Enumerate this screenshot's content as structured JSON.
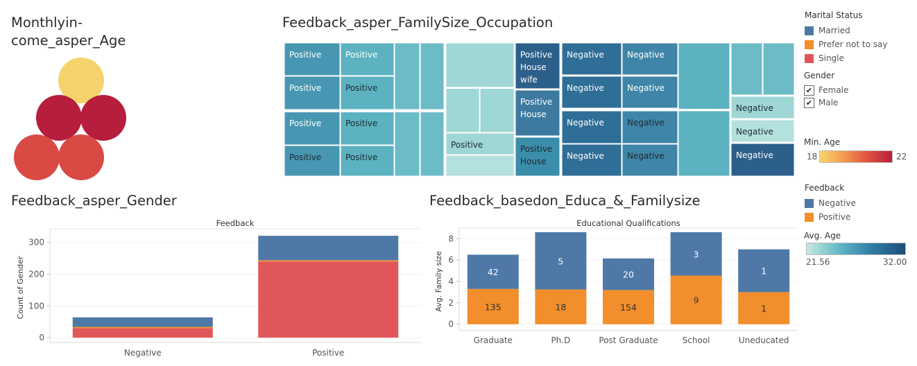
{
  "titles": {
    "age": "Monthlyin-\ncome_asper_Age",
    "treemap": "Feedback_asper_FamilySize_Occupation",
    "gender": "Feedback_asper_Gender",
    "edu": "Feedback_basedon_Educa_&_Familysize"
  },
  "colors": {
    "married": "#4e79a7",
    "prefer_not": "#f28e2b",
    "single": "#e15759",
    "negative": "#4e79a7",
    "positive": "#f28e2b"
  },
  "legends": {
    "marital": {
      "title": "Marital Status",
      "items": [
        "Married",
        "Prefer not to say",
        "Single"
      ]
    },
    "gender": {
      "title": "Gender",
      "items": [
        "Female",
        "Male"
      ]
    },
    "min_age": {
      "title": "Min. Age",
      "min": "18",
      "max": "22"
    },
    "feedback": {
      "title": "Feedback",
      "items": [
        "Negative",
        "Positive"
      ]
    },
    "avg_age": {
      "title": "Avg. Age",
      "min": "21.56",
      "max": "32.00"
    }
  },
  "chart_data": [
    {
      "type": "bubble",
      "title": "Monthlyin-come_asper_Age",
      "color_measure": "Min. Age",
      "bubbles": [
        {
          "min_age": 18
        },
        {
          "min_age": 22
        },
        {
          "min_age": 22
        },
        {
          "min_age": 21
        },
        {
          "min_age": 21
        }
      ]
    },
    {
      "type": "treemap",
      "title": "Feedback_asper_FamilySize_Occupation",
      "color_measure": "Avg. Age",
      "labels": [
        "Positive",
        "Positive",
        "Positive",
        "Positive",
        "Positive",
        "Positive",
        "Positive",
        "Positive",
        "Positive",
        "Positive\nHouse\nwife",
        "Positive\nHouse",
        "Positive\nHouse",
        "Negative",
        "Negative",
        "Negative",
        "Negative",
        "Negative",
        "Negative",
        "Negative",
        "Negative",
        "Negative",
        "Negative",
        "Negative"
      ]
    },
    {
      "type": "bar",
      "stacked": true,
      "title": "Feedback_asper_Gender",
      "header": "Feedback",
      "ylabel": "Count of Gender",
      "categories": [
        "Negative",
        "Positive"
      ],
      "yticks": [
        0,
        100,
        200,
        300
      ],
      "ylim": [
        -15,
        330
      ],
      "series": [
        {
          "name": "Single",
          "values": [
            30,
            240
          ]
        },
        {
          "name": "Prefer not to say",
          "values": [
            4,
            4
          ]
        },
        {
          "name": "Married",
          "values": [
            30,
            77
          ]
        }
      ]
    },
    {
      "type": "bar",
      "stacked": true,
      "title": "Feedback_basedon_Educa_&_Familysize",
      "header": "Educational Qualifications",
      "ylabel": "Avg. Family size",
      "categories": [
        "Graduate",
        "Ph.D",
        "Post Graduate",
        "School",
        "Uneducated"
      ],
      "yticks": [
        0,
        2,
        4,
        6,
        8
      ],
      "ylim": [
        -0.6,
        8.6
      ],
      "series": [
        {
          "name": "Positive",
          "values": [
            3.3,
            3.25,
            3.2,
            4.55,
            3.0
          ],
          "labels": [
            "135",
            "18",
            "154",
            "9",
            "1"
          ]
        },
        {
          "name": "Negative",
          "values": [
            3.2,
            5.35,
            2.95,
            4.05,
            4.0
          ],
          "labels": [
            "42",
            "5",
            "20",
            "3",
            "1"
          ]
        }
      ]
    }
  ]
}
